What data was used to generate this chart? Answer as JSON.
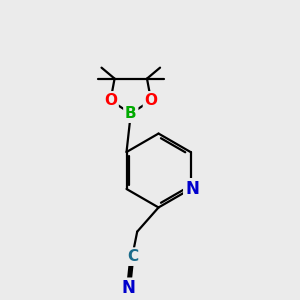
{
  "bg_color": "#ebebeb",
  "bond_color": "#000000",
  "bond_width": 1.6,
  "atom_colors": {
    "N": "#0000cc",
    "O": "#ff0000",
    "B": "#00aa00",
    "C": "#1a6b8a"
  },
  "font_size": 11,
  "fig_size": [
    3.0,
    3.0
  ],
  "dpi": 100
}
